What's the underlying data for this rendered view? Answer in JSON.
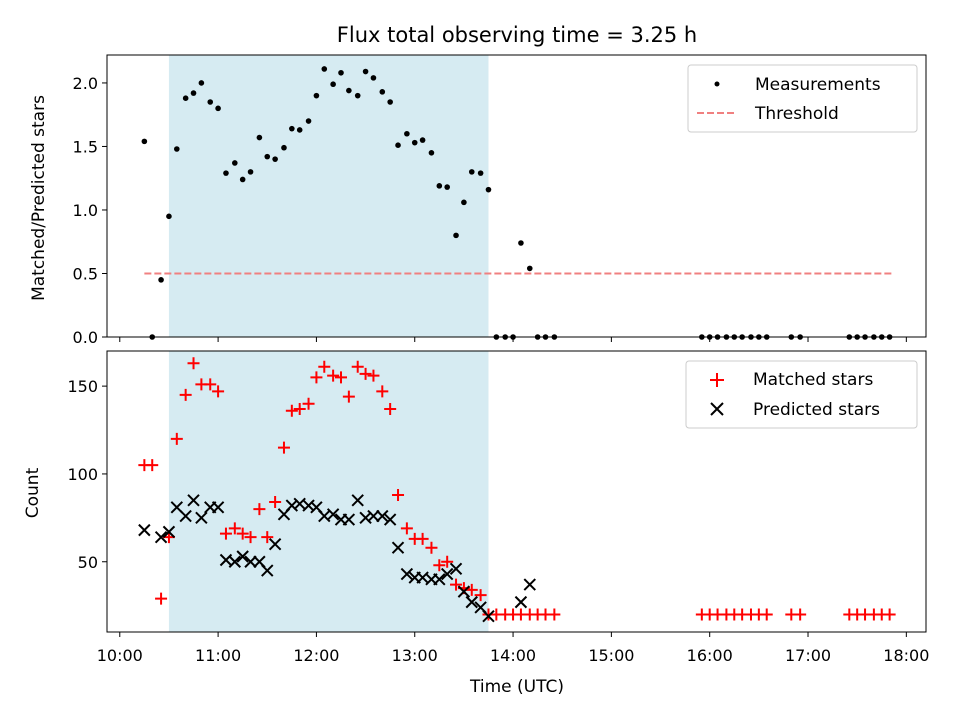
{
  "chart_data": {
    "type": "scatter",
    "title": "Flux total observing time = 3.25 h",
    "shaded_region": {
      "start": 10.5,
      "end": 13.75,
      "color": "#add8e6"
    },
    "x_ticks": [
      "10:00",
      "11:00",
      "12:00",
      "13:00",
      "14:00",
      "15:00",
      "16:00",
      "17:00",
      "18:00"
    ],
    "x_tick_values": [
      10,
      11,
      12,
      13,
      14,
      15,
      16,
      17,
      18
    ],
    "xlabel": "Time (UTC)",
    "xlim": [
      9.87,
      18.2
    ],
    "panels": [
      {
        "ylabel": "Matched/Predicted stars",
        "ylim": [
          0,
          2.22
        ],
        "y_ticks": [
          "0.0",
          "0.5",
          "1.0",
          "1.5",
          "2.0"
        ],
        "y_tick_values": [
          0,
          0.5,
          1.0,
          1.5,
          2.0
        ],
        "series": [
          {
            "name": "Measurements",
            "marker": "dot",
            "color": "#000000",
            "points": [
              [
                10.25,
                1.54
              ],
              [
                10.33,
                0.0
              ],
              [
                10.42,
                0.45
              ],
              [
                10.5,
                0.95
              ],
              [
                10.58,
                1.48
              ],
              [
                10.67,
                1.88
              ],
              [
                10.75,
                1.92
              ],
              [
                10.83,
                2.0
              ],
              [
                10.92,
                1.85
              ],
              [
                11.0,
                1.8
              ],
              [
                11.08,
                1.29
              ],
              [
                11.17,
                1.37
              ],
              [
                11.25,
                1.24
              ],
              [
                11.33,
                1.3
              ],
              [
                11.42,
                1.57
              ],
              [
                11.5,
                1.42
              ],
              [
                11.58,
                1.4
              ],
              [
                11.67,
                1.49
              ],
              [
                11.75,
                1.64
              ],
              [
                11.83,
                1.63
              ],
              [
                11.92,
                1.7
              ],
              [
                12.0,
                1.9
              ],
              [
                12.08,
                2.11
              ],
              [
                12.17,
                1.99
              ],
              [
                12.25,
                2.08
              ],
              [
                12.33,
                1.94
              ],
              [
                12.42,
                1.9
              ],
              [
                12.5,
                2.09
              ],
              [
                12.58,
                2.04
              ],
              [
                12.67,
                1.93
              ],
              [
                12.75,
                1.85
              ],
              [
                12.83,
                1.51
              ],
              [
                12.92,
                1.6
              ],
              [
                13.0,
                1.53
              ],
              [
                13.08,
                1.55
              ],
              [
                13.17,
                1.45
              ],
              [
                13.25,
                1.19
              ],
              [
                13.33,
                1.18
              ],
              [
                13.42,
                0.8
              ],
              [
                13.5,
                1.06
              ],
              [
                13.58,
                1.3
              ],
              [
                13.67,
                1.29
              ],
              [
                13.75,
                1.16
              ],
              [
                13.83,
                0.0
              ],
              [
                13.92,
                0.0
              ],
              [
                14.0,
                0.0
              ],
              [
                14.08,
                0.74
              ],
              [
                14.17,
                0.54
              ],
              [
                14.25,
                0.0
              ],
              [
                14.33,
                0.0
              ],
              [
                14.42,
                0.0
              ],
              [
                15.92,
                0.0
              ],
              [
                16.0,
                0.0
              ],
              [
                16.08,
                0.0
              ],
              [
                16.17,
                0.0
              ],
              [
                16.25,
                0.0
              ],
              [
                16.33,
                0.0
              ],
              [
                16.42,
                0.0
              ],
              [
                16.5,
                0.0
              ],
              [
                16.58,
                0.0
              ],
              [
                16.83,
                0.0
              ],
              [
                16.92,
                0.0
              ],
              [
                17.42,
                0.0
              ],
              [
                17.5,
                0.0
              ],
              [
                17.58,
                0.0
              ],
              [
                17.67,
                0.0
              ],
              [
                17.75,
                0.0
              ],
              [
                17.83,
                0.0
              ]
            ]
          },
          {
            "name": "Threshold",
            "marker": "dashed-line",
            "color": "#f08080",
            "points": [
              [
                10.25,
                0.5
              ],
              [
                17.87,
                0.5
              ]
            ]
          }
        ],
        "legend": [
          "Measurements",
          "Threshold"
        ],
        "legend_position": "top-right"
      },
      {
        "ylabel": "Count",
        "ylim": [
          10,
          170
        ],
        "y_ticks": [
          "50",
          "100",
          "150"
        ],
        "y_tick_values": [
          50,
          100,
          150
        ],
        "series": [
          {
            "name": "Matched stars",
            "marker": "plus",
            "color": "#ff0000",
            "points": [
              [
                10.25,
                105
              ],
              [
                10.33,
                105
              ],
              [
                10.42,
                29
              ],
              [
                10.5,
                64
              ],
              [
                10.58,
                120
              ],
              [
                10.67,
                145
              ],
              [
                10.75,
                163
              ],
              [
                10.83,
                151
              ],
              [
                10.92,
                151
              ],
              [
                11.0,
                147
              ],
              [
                11.08,
                66
              ],
              [
                11.17,
                69
              ],
              [
                11.25,
                66
              ],
              [
                11.33,
                64
              ],
              [
                11.42,
                80
              ],
              [
                11.5,
                64
              ],
              [
                11.58,
                84
              ],
              [
                11.67,
                115
              ],
              [
                11.75,
                136
              ],
              [
                11.83,
                137
              ],
              [
                11.92,
                140
              ],
              [
                12.0,
                155
              ],
              [
                12.08,
                161
              ],
              [
                12.17,
                156
              ],
              [
                12.25,
                155
              ],
              [
                12.33,
                144
              ],
              [
                12.42,
                161
              ],
              [
                12.5,
                157
              ],
              [
                12.58,
                156
              ],
              [
                12.67,
                147
              ],
              [
                12.75,
                137
              ],
              [
                12.83,
                88
              ],
              [
                12.92,
                69
              ],
              [
                13.0,
                63
              ],
              [
                13.08,
                63
              ],
              [
                13.17,
                58
              ],
              [
                13.25,
                48
              ],
              [
                13.33,
                50
              ],
              [
                13.42,
                37
              ],
              [
                13.5,
                35
              ],
              [
                13.58,
                34
              ],
              [
                13.67,
                31
              ],
              [
                13.75,
                20
              ],
              [
                13.83,
                20
              ],
              [
                13.92,
                20
              ],
              [
                14.0,
                20
              ],
              [
                14.08,
                20
              ],
              [
                14.17,
                20
              ],
              [
                14.25,
                20
              ],
              [
                14.33,
                20
              ],
              [
                14.42,
                20
              ],
              [
                15.92,
                20
              ],
              [
                16.0,
                20
              ],
              [
                16.08,
                20
              ],
              [
                16.17,
                20
              ],
              [
                16.25,
                20
              ],
              [
                16.33,
                20
              ],
              [
                16.42,
                20
              ],
              [
                16.5,
                20
              ],
              [
                16.58,
                20
              ],
              [
                16.83,
                20
              ],
              [
                16.92,
                20
              ],
              [
                17.42,
                20
              ],
              [
                17.5,
                20
              ],
              [
                17.58,
                20
              ],
              [
                17.67,
                20
              ],
              [
                17.75,
                20
              ],
              [
                17.83,
                20
              ]
            ]
          },
          {
            "name": "Predicted stars",
            "marker": "x",
            "color": "#000000",
            "points": [
              [
                10.25,
                68
              ],
              [
                10.42,
                64
              ],
              [
                10.5,
                67
              ],
              [
                10.58,
                81
              ],
              [
                10.67,
                76
              ],
              [
                10.75,
                85
              ],
              [
                10.83,
                75
              ],
              [
                10.92,
                81
              ],
              [
                11.0,
                81
              ],
              [
                11.08,
                51
              ],
              [
                11.17,
                50
              ],
              [
                11.25,
                53
              ],
              [
                11.33,
                50
              ],
              [
                11.42,
                50
              ],
              [
                11.5,
                45
              ],
              [
                11.58,
                60
              ],
              [
                11.67,
                77
              ],
              [
                11.75,
                82
              ],
              [
                11.83,
                83
              ],
              [
                11.92,
                82
              ],
              [
                12.0,
                81
              ],
              [
                12.08,
                76
              ],
              [
                12.17,
                77
              ],
              [
                12.25,
                74
              ],
              [
                12.33,
                74
              ],
              [
                12.42,
                85
              ],
              [
                12.5,
                75
              ],
              [
                12.58,
                76
              ],
              [
                12.67,
                76
              ],
              [
                12.75,
                74
              ],
              [
                12.83,
                58
              ],
              [
                12.92,
                43
              ],
              [
                13.0,
                41
              ],
              [
                13.08,
                41
              ],
              [
                13.17,
                40
              ],
              [
                13.25,
                40
              ],
              [
                13.33,
                43
              ],
              [
                13.42,
                46
              ],
              [
                13.5,
                33
              ],
              [
                13.58,
                27
              ],
              [
                13.67,
                24
              ],
              [
                13.75,
                19
              ],
              [
                14.08,
                27
              ],
              [
                14.17,
                37
              ]
            ]
          }
        ],
        "legend": [
          "Matched stars",
          "Predicted stars"
        ],
        "legend_position": "top-right"
      }
    ]
  }
}
